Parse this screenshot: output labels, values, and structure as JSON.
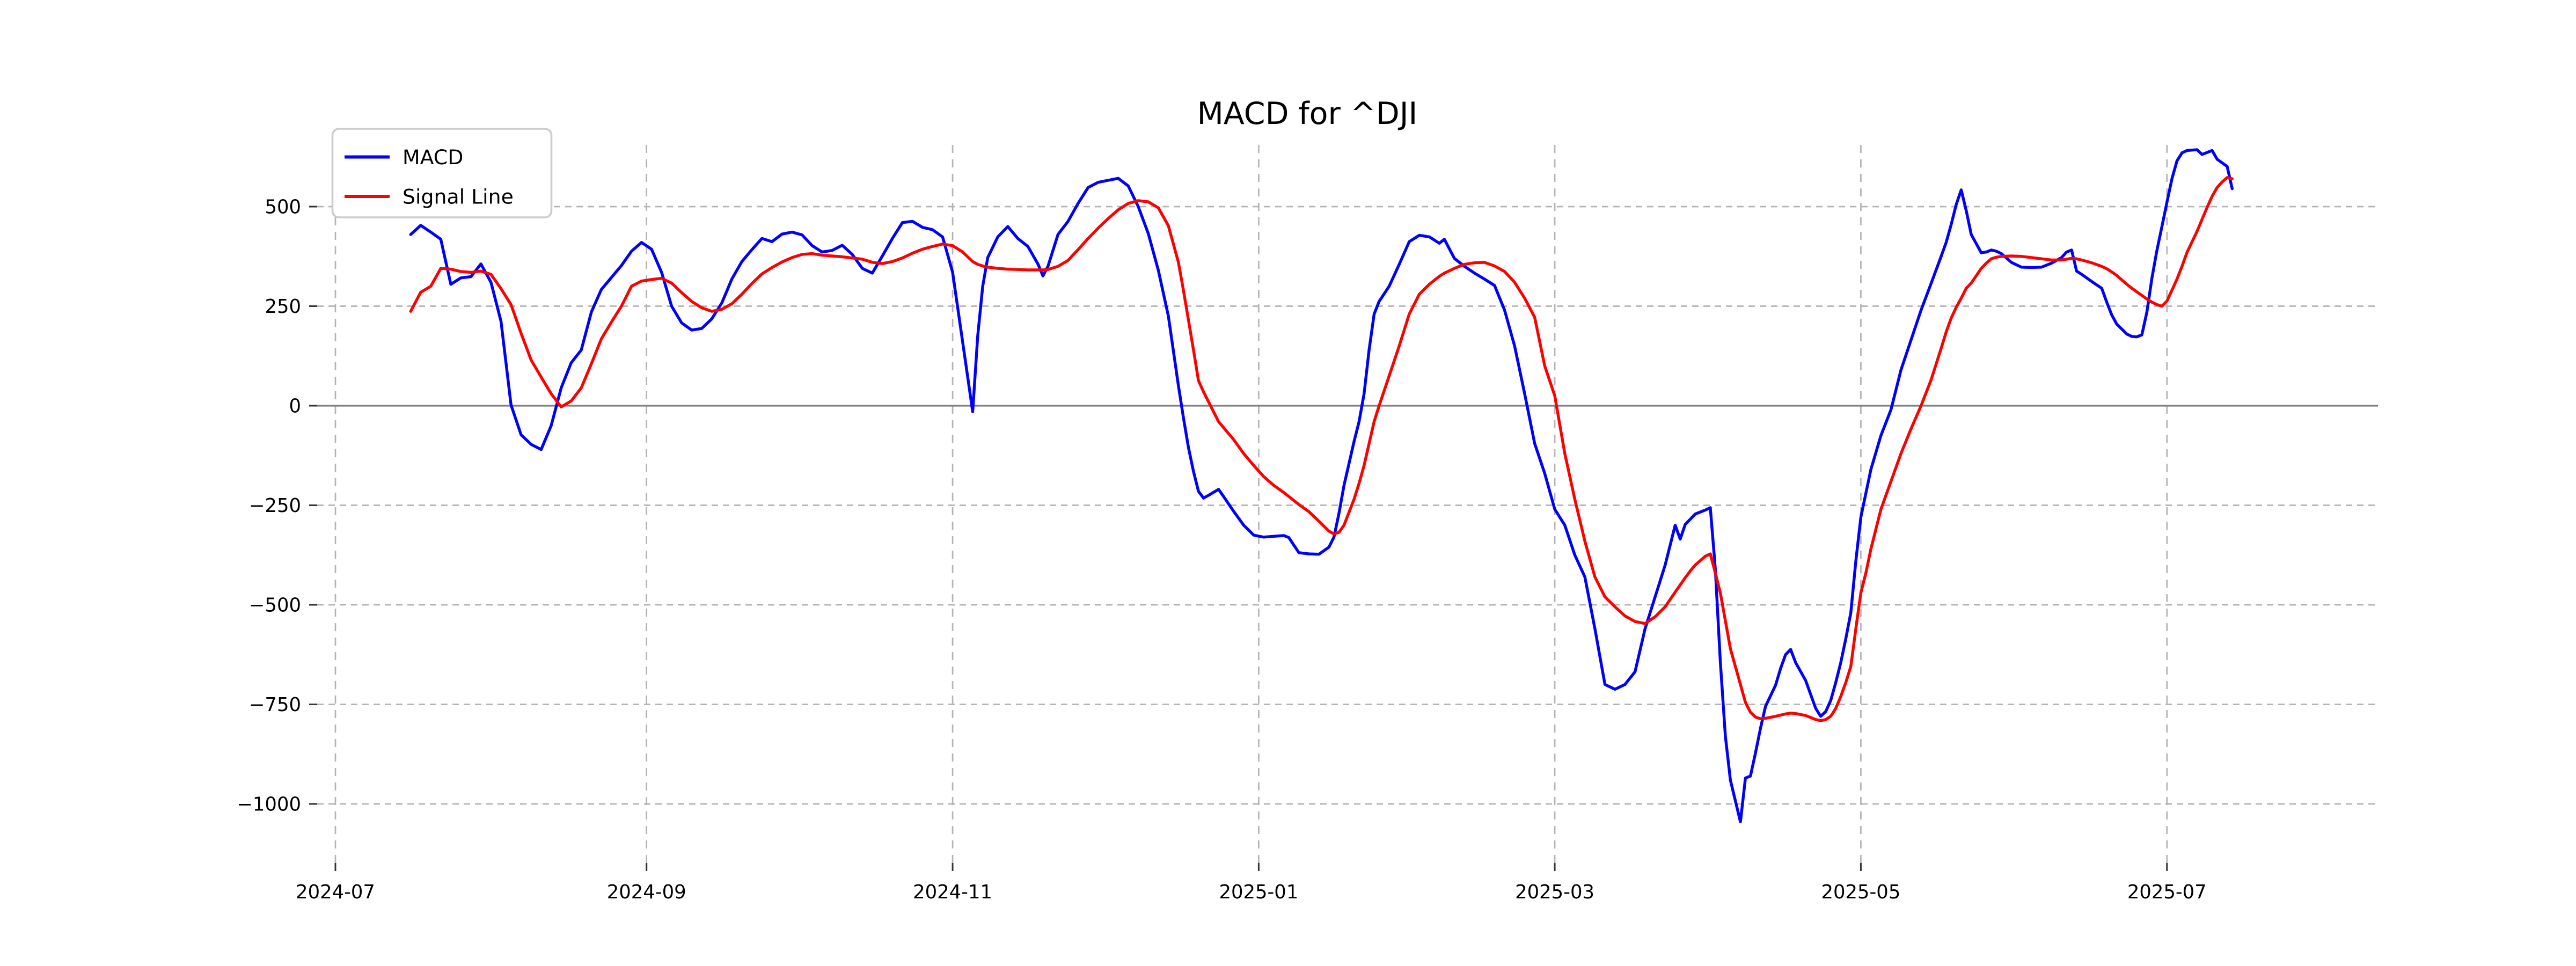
{
  "title": "MACD for ^DJI",
  "legend": {
    "items": [
      {
        "label": "MACD",
        "color": "#0000ff"
      },
      {
        "label": "Signal Line",
        "color": "#ff0000"
      }
    ]
  },
  "axes": {
    "x_ticks": [
      {
        "label": "2024-07",
        "date": "2024-07-01"
      },
      {
        "label": "2024-09",
        "date": "2024-09-01"
      },
      {
        "label": "2024-11",
        "date": "2024-11-01"
      },
      {
        "label": "2025-01",
        "date": "2025-01-01"
      },
      {
        "label": "2025-03",
        "date": "2025-03-01"
      },
      {
        "label": "2025-05",
        "date": "2025-05-01"
      },
      {
        "label": "2025-07",
        "date": "2025-07-01"
      }
    ],
    "y_ticks": [
      {
        "label": "500",
        "value": 500
      },
      {
        "label": "250",
        "value": 250
      },
      {
        "label": "0",
        "value": 0
      },
      {
        "label": "−250",
        "value": -250
      },
      {
        "label": "−500",
        "value": -500
      },
      {
        "label": "−750",
        "value": -750
      },
      {
        "label": "−1000",
        "value": -1000
      }
    ],
    "grid_color": "#b3b3b3",
    "zero_line_color": "#808080",
    "zero_line_value": 0,
    "tick_color": "#333333"
  },
  "chart_data": {
    "type": "line",
    "title": "MACD for ^DJI",
    "xlabel": "",
    "ylabel": "",
    "x_axis": "date",
    "date_start": "2024-07-16",
    "date_end": "2025-07-14",
    "ylim": [
      -1147,
      655
    ],
    "grid": true,
    "legend_position": "upper left",
    "series_names": [
      "MACD",
      "Signal Line"
    ],
    "series_colors": [
      "#0000ff",
      "#ff0000"
    ],
    "columns": [
      "date",
      "macd",
      "signal"
    ],
    "rows": [
      [
        "2024-07-16",
        430,
        237
      ],
      [
        "2024-07-18",
        453,
        285
      ],
      [
        "2024-07-20",
        436,
        300
      ],
      [
        "2024-07-22",
        418,
        345
      ],
      [
        "2024-07-24",
        305,
        343
      ],
      [
        "2024-07-26",
        321,
        337
      ],
      [
        "2024-07-28",
        324,
        335
      ],
      [
        "2024-07-30",
        356,
        338
      ],
      [
        "2024-08-01",
        310,
        330
      ],
      [
        "2024-08-03",
        212,
        294
      ],
      [
        "2024-08-05",
        2,
        254
      ],
      [
        "2024-08-07",
        -73,
        182
      ],
      [
        "2024-08-09",
        -97,
        115
      ],
      [
        "2024-08-11",
        -110,
        72
      ],
      [
        "2024-08-13",
        -50,
        30
      ],
      [
        "2024-08-15",
        45,
        -3
      ],
      [
        "2024-08-17",
        108,
        12
      ],
      [
        "2024-08-19",
        140,
        45
      ],
      [
        "2024-08-21",
        235,
        105
      ],
      [
        "2024-08-23",
        292,
        168
      ],
      [
        "2024-08-25",
        322,
        210
      ],
      [
        "2024-08-27",
        352,
        250
      ],
      [
        "2024-08-29",
        388,
        300
      ],
      [
        "2024-08-31",
        410,
        313
      ],
      [
        "2024-09-02",
        393,
        317
      ],
      [
        "2024-09-04",
        335,
        320
      ],
      [
        "2024-09-06",
        250,
        308
      ],
      [
        "2024-09-08",
        208,
        284
      ],
      [
        "2024-09-10",
        190,
        262
      ],
      [
        "2024-09-12",
        194,
        246
      ],
      [
        "2024-09-14",
        218,
        237
      ],
      [
        "2024-09-16",
        258,
        242
      ],
      [
        "2024-09-18",
        318,
        256
      ],
      [
        "2024-09-20",
        362,
        280
      ],
      [
        "2024-09-22",
        392,
        307
      ],
      [
        "2024-09-24",
        420,
        331
      ],
      [
        "2024-09-26",
        412,
        347
      ],
      [
        "2024-09-28",
        431,
        361
      ],
      [
        "2024-09-30",
        436,
        372
      ],
      [
        "2024-10-02",
        429,
        380
      ],
      [
        "2024-10-04",
        402,
        382
      ],
      [
        "2024-10-06",
        386,
        378
      ],
      [
        "2024-10-08",
        390,
        376
      ],
      [
        "2024-10-10",
        403,
        374
      ],
      [
        "2024-10-12",
        380,
        371
      ],
      [
        "2024-10-14",
        345,
        368
      ],
      [
        "2024-10-16",
        333,
        360
      ],
      [
        "2024-10-18",
        376,
        357
      ],
      [
        "2024-10-20",
        420,
        362
      ],
      [
        "2024-10-22",
        460,
        371
      ],
      [
        "2024-10-24",
        463,
        383
      ],
      [
        "2024-10-26",
        448,
        393
      ],
      [
        "2024-10-28",
        442,
        400
      ],
      [
        "2024-10-30",
        424,
        406
      ],
      [
        "2024-11-01",
        335,
        402
      ],
      [
        "2024-11-03",
        160,
        386
      ],
      [
        "2024-11-05",
        -15,
        362
      ],
      [
        "2024-11-06",
        175,
        355
      ],
      [
        "2024-11-07",
        300,
        351
      ],
      [
        "2024-11-08",
        372,
        348
      ],
      [
        "2024-11-10",
        424,
        345
      ],
      [
        "2024-11-12",
        450,
        343
      ],
      [
        "2024-11-14",
        420,
        342
      ],
      [
        "2024-11-16",
        400,
        341
      ],
      [
        "2024-11-18",
        356,
        341
      ],
      [
        "2024-11-19",
        326,
        341
      ],
      [
        "2024-11-20",
        350,
        342
      ],
      [
        "2024-11-22",
        430,
        350
      ],
      [
        "2024-11-24",
        463,
        365
      ],
      [
        "2024-11-26",
        508,
        392
      ],
      [
        "2024-11-28",
        548,
        420
      ],
      [
        "2024-11-30",
        561,
        446
      ],
      [
        "2024-12-02",
        566,
        470
      ],
      [
        "2024-12-04",
        571,
        492
      ],
      [
        "2024-12-06",
        552,
        508
      ],
      [
        "2024-12-08",
        500,
        515
      ],
      [
        "2024-12-10",
        432,
        512
      ],
      [
        "2024-12-12",
        340,
        497
      ],
      [
        "2024-12-14",
        225,
        452
      ],
      [
        "2024-12-16",
        50,
        360
      ],
      [
        "2024-12-17",
        -30,
        290
      ],
      [
        "2024-12-18",
        -105,
        215
      ],
      [
        "2024-12-19",
        -165,
        140
      ],
      [
        "2024-12-20",
        -215,
        63
      ],
      [
        "2024-12-21",
        -232,
        35
      ],
      [
        "2024-12-22",
        -225,
        10
      ],
      [
        "2024-12-24",
        -210,
        -40
      ],
      [
        "2024-12-25",
        -228,
        -55
      ],
      [
        "2024-12-27",
        -265,
        -85
      ],
      [
        "2024-12-29",
        -300,
        -120
      ],
      [
        "2024-12-31",
        -325,
        -150
      ],
      [
        "2025-01-02",
        -330,
        -178
      ],
      [
        "2025-01-04",
        -328,
        -200
      ],
      [
        "2025-01-06",
        -326,
        -218
      ],
      [
        "2025-01-07",
        -331,
        -228
      ],
      [
        "2025-01-08",
        -350,
        -238
      ],
      [
        "2025-01-09",
        -369,
        -248
      ],
      [
        "2025-01-11",
        -372,
        -266
      ],
      [
        "2025-01-13",
        -373,
        -290
      ],
      [
        "2025-01-15",
        -355,
        -315
      ],
      [
        "2025-01-16",
        -330,
        -322
      ],
      [
        "2025-01-17",
        -270,
        -318
      ],
      [
        "2025-01-18",
        -200,
        -300
      ],
      [
        "2025-01-20",
        -90,
        -235
      ],
      [
        "2025-01-21",
        -40,
        -195
      ],
      [
        "2025-01-22",
        30,
        -150
      ],
      [
        "2025-01-23",
        140,
        -95
      ],
      [
        "2025-01-24",
        230,
        -40
      ],
      [
        "2025-01-25",
        262,
        0
      ],
      [
        "2025-01-27",
        300,
        75
      ],
      [
        "2025-01-29",
        355,
        150
      ],
      [
        "2025-01-31",
        412,
        230
      ],
      [
        "2025-02-02",
        428,
        280
      ],
      [
        "2025-02-04",
        424,
        305
      ],
      [
        "2025-02-06",
        408,
        325
      ],
      [
        "2025-02-07",
        418,
        333
      ],
      [
        "2025-02-09",
        370,
        345
      ],
      [
        "2025-02-11",
        350,
        355
      ],
      [
        "2025-02-13",
        333,
        359
      ],
      [
        "2025-02-15",
        318,
        360
      ],
      [
        "2025-02-17",
        302,
        351
      ],
      [
        "2025-02-19",
        240,
        337
      ],
      [
        "2025-02-21",
        150,
        310
      ],
      [
        "2025-02-23",
        30,
        270
      ],
      [
        "2025-02-25",
        -95,
        222
      ],
      [
        "2025-02-27",
        -170,
        100
      ],
      [
        "2025-03-01",
        -260,
        25
      ],
      [
        "2025-03-03",
        -300,
        -120
      ],
      [
        "2025-03-05",
        -375,
        -235
      ],
      [
        "2025-03-07",
        -430,
        -340
      ],
      [
        "2025-03-09",
        -560,
        -430
      ],
      [
        "2025-03-11",
        -700,
        -480
      ],
      [
        "2025-03-13",
        -712,
        -505
      ],
      [
        "2025-03-15",
        -700,
        -528
      ],
      [
        "2025-03-17",
        -668,
        -542
      ],
      [
        "2025-03-19",
        -560,
        -547
      ],
      [
        "2025-03-21",
        -480,
        -530
      ],
      [
        "2025-03-23",
        -400,
        -505
      ],
      [
        "2025-03-25",
        -300,
        -468
      ],
      [
        "2025-03-26",
        -335,
        -450
      ],
      [
        "2025-03-27",
        -298,
        -432
      ],
      [
        "2025-03-28",
        -285,
        -415
      ],
      [
        "2025-03-29",
        -272,
        -400
      ],
      [
        "2025-03-31",
        -262,
        -378
      ],
      [
        "2025-04-01",
        -256,
        -372
      ],
      [
        "2025-04-02",
        -410,
        -420
      ],
      [
        "2025-04-03",
        -644,
        -470
      ],
      [
        "2025-04-04",
        -830,
        -540
      ],
      [
        "2025-04-05",
        -940,
        -610
      ],
      [
        "2025-04-07",
        -1045,
        -700
      ],
      [
        "2025-04-08",
        -935,
        -745
      ],
      [
        "2025-04-09",
        -930,
        -770
      ],
      [
        "2025-04-10",
        -872,
        -782
      ],
      [
        "2025-04-11",
        -810,
        -786
      ],
      [
        "2025-04-12",
        -755,
        -785
      ],
      [
        "2025-04-14",
        -702,
        -780
      ],
      [
        "2025-04-15",
        -660,
        -777
      ],
      [
        "2025-04-16",
        -625,
        -774
      ],
      [
        "2025-04-17",
        -612,
        -772
      ],
      [
        "2025-04-18",
        -645,
        -773
      ],
      [
        "2025-04-20",
        -690,
        -778
      ],
      [
        "2025-04-22",
        -760,
        -788
      ],
      [
        "2025-04-23",
        -780,
        -791
      ],
      [
        "2025-04-24",
        -768,
        -788
      ],
      [
        "2025-04-25",
        -740,
        -780
      ],
      [
        "2025-04-26",
        -695,
        -760
      ],
      [
        "2025-04-27",
        -645,
        -730
      ],
      [
        "2025-04-28",
        -585,
        -695
      ],
      [
        "2025-04-29",
        -520,
        -655
      ],
      [
        "2025-04-30",
        -390,
        -560
      ],
      [
        "2025-05-01",
        -280,
        -470
      ],
      [
        "2025-05-02",
        -220,
        -420
      ],
      [
        "2025-05-03",
        -160,
        -360
      ],
      [
        "2025-05-05",
        -75,
        -260
      ],
      [
        "2025-05-07",
        -10,
        -190
      ],
      [
        "2025-05-09",
        90,
        -120
      ],
      [
        "2025-05-11",
        165,
        -58
      ],
      [
        "2025-05-13",
        240,
        0
      ],
      [
        "2025-05-15",
        307,
        65
      ],
      [
        "2025-05-17",
        375,
        144
      ],
      [
        "2025-05-18",
        410,
        185
      ],
      [
        "2025-05-19",
        455,
        220
      ],
      [
        "2025-05-20",
        505,
        247
      ],
      [
        "2025-05-21",
        542,
        270
      ],
      [
        "2025-05-22",
        490,
        295
      ],
      [
        "2025-05-23",
        430,
        308
      ],
      [
        "2025-05-25",
        384,
        345
      ],
      [
        "2025-05-26",
        386,
        358
      ],
      [
        "2025-05-27",
        391,
        369
      ],
      [
        "2025-05-28",
        388,
        373
      ],
      [
        "2025-05-29",
        382,
        375
      ],
      [
        "2025-05-31",
        360,
        376
      ],
      [
        "2025-06-02",
        348,
        375
      ],
      [
        "2025-06-04",
        347,
        372
      ],
      [
        "2025-06-06",
        348,
        369
      ],
      [
        "2025-06-08",
        358,
        366
      ],
      [
        "2025-06-10",
        372,
        366
      ],
      [
        "2025-06-11",
        386,
        368
      ],
      [
        "2025-06-12",
        391,
        370
      ],
      [
        "2025-06-13",
        338,
        369
      ],
      [
        "2025-06-14",
        330,
        366
      ],
      [
        "2025-06-16",
        312,
        359
      ],
      [
        "2025-06-18",
        295,
        350
      ],
      [
        "2025-06-19",
        260,
        344
      ],
      [
        "2025-06-20",
        228,
        336
      ],
      [
        "2025-06-21",
        205,
        327
      ],
      [
        "2025-06-23",
        180,
        305
      ],
      [
        "2025-06-24",
        174,
        295
      ],
      [
        "2025-06-25",
        173,
        286
      ],
      [
        "2025-06-26",
        178,
        277
      ],
      [
        "2025-06-27",
        235,
        268
      ],
      [
        "2025-06-28",
        320,
        260
      ],
      [
        "2025-06-29",
        390,
        254
      ],
      [
        "2025-06-30",
        450,
        250
      ],
      [
        "2025-07-01",
        511,
        263
      ],
      [
        "2025-07-02",
        570,
        290
      ],
      [
        "2025-07-03",
        615,
        318
      ],
      [
        "2025-07-04",
        635,
        350
      ],
      [
        "2025-07-05",
        641,
        385
      ],
      [
        "2025-07-07",
        643,
        438
      ],
      [
        "2025-07-08",
        631,
        468
      ],
      [
        "2025-07-09",
        636,
        498
      ],
      [
        "2025-07-10",
        641,
        526
      ],
      [
        "2025-07-11",
        619,
        548
      ],
      [
        "2025-07-12",
        610,
        562
      ],
      [
        "2025-07-13",
        601,
        573
      ],
      [
        "2025-07-14",
        545,
        570
      ]
    ]
  }
}
